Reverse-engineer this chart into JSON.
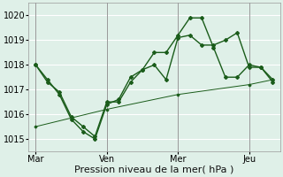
{
  "background_color": "#dff0e8",
  "grid_color": "#ffffff",
  "line_color1": "#1a5c1a",
  "line_color2": "#1a5c1a",
  "line_color3": "#1a5c1a",
  "xlabel": "Pression niveau de la mer( hPa )",
  "ylim": [
    1014.5,
    1020.5
  ],
  "yticks": [
    1015,
    1016,
    1017,
    1018,
    1019,
    1020
  ],
  "xtick_labels": [
    "Mar",
    "Ven",
    "Mer",
    "Jeu"
  ],
  "xtick_positions": [
    0,
    30,
    60,
    90
  ],
  "vline_positions": [
    0,
    30,
    60,
    90
  ],
  "xlim": [
    -3,
    103
  ],
  "series1_x": [
    0,
    5,
    10,
    15,
    20,
    25,
    30,
    35,
    40,
    45,
    50,
    55,
    60,
    65,
    70,
    75,
    80,
    85,
    90,
    95,
    100
  ],
  "series1_y": [
    1018.0,
    1017.3,
    1016.9,
    1015.9,
    1015.5,
    1015.1,
    1016.5,
    1016.5,
    1017.3,
    1017.8,
    1018.0,
    1017.4,
    1019.1,
    1019.2,
    1018.8,
    1018.8,
    1019.0,
    1019.3,
    1017.9,
    1017.9,
    1017.3
  ],
  "series2_x": [
    0,
    5,
    10,
    15,
    20,
    25,
    30,
    35,
    40,
    45,
    50,
    55,
    60,
    65,
    70,
    75,
    80,
    85,
    90,
    95,
    100
  ],
  "series2_y": [
    1018.0,
    1017.4,
    1016.8,
    1015.8,
    1015.3,
    1015.0,
    1016.4,
    1016.6,
    1017.5,
    1017.8,
    1018.5,
    1018.5,
    1019.2,
    1019.9,
    1019.9,
    1018.7,
    1017.5,
    1017.5,
    1018.0,
    1017.9,
    1017.4
  ],
  "series3_x": [
    0,
    30,
    60,
    90,
    100
  ],
  "series3_y": [
    1015.5,
    1016.2,
    1016.8,
    1017.2,
    1017.4
  ],
  "marker_size": 2.0,
  "linewidth1": 1.0,
  "linewidth2": 1.0,
  "linewidth3": 0.7,
  "xlabel_fontsize": 8,
  "tick_fontsize": 7
}
